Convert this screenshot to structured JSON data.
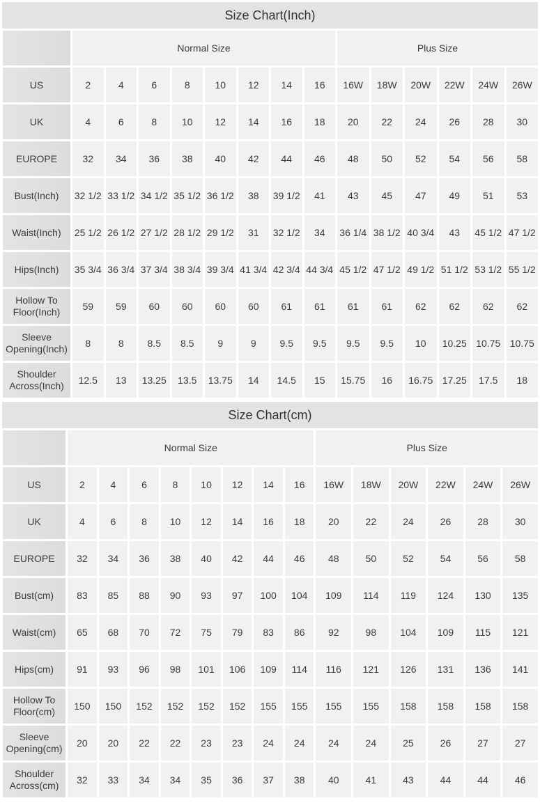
{
  "tables": [
    {
      "title": "Size Chart(Inch)",
      "groups": [
        "Normal Size",
        "Plus Size"
      ],
      "rows": [
        {
          "label": "US",
          "values": [
            "2",
            "4",
            "6",
            "8",
            "10",
            "12",
            "14",
            "16",
            "16W",
            "18W",
            "20W",
            "22W",
            "24W",
            "26W"
          ]
        },
        {
          "label": "UK",
          "values": [
            "4",
            "6",
            "8",
            "10",
            "12",
            "14",
            "16",
            "18",
            "20",
            "22",
            "24",
            "26",
            "28",
            "30"
          ]
        },
        {
          "label": "EUROPE",
          "values": [
            "32",
            "34",
            "36",
            "38",
            "40",
            "42",
            "44",
            "46",
            "48",
            "50",
            "52",
            "54",
            "56",
            "58"
          ]
        },
        {
          "label": "Bust(Inch)",
          "values": [
            "32 1/2",
            "33 1/2",
            "34 1/2",
            "35 1/2",
            "36 1/2",
            "38",
            "39 1/2",
            "41",
            "43",
            "45",
            "47",
            "49",
            "51",
            "53"
          ]
        },
        {
          "label": "Waist(Inch)",
          "values": [
            "25 1/2",
            "26 1/2",
            "27 1/2",
            "28 1/2",
            "29 1/2",
            "31",
            "32 1/2",
            "34",
            "36 1/4",
            "38 1/2",
            "40 3/4",
            "43",
            "45 1/2",
            "47 1/2"
          ]
        },
        {
          "label": "Hips(Inch)",
          "values": [
            "35 3/4",
            "36 3/4",
            "37 3/4",
            "38 3/4",
            "39 3/4",
            "41 3/4",
            "42 3/4",
            "44 3/4",
            "45 1/2",
            "47 1/2",
            "49 1/2",
            "51 1/2",
            "53 1/2",
            "55 1/2"
          ]
        },
        {
          "label": "Hollow To Floor(Inch)",
          "values": [
            "59",
            "59",
            "60",
            "60",
            "60",
            "60",
            "61",
            "61",
            "61",
            "61",
            "62",
            "62",
            "62",
            "62"
          ]
        },
        {
          "label": "Sleeve Opening(Inch)",
          "values": [
            "8",
            "8",
            "8.5",
            "8.5",
            "9",
            "9",
            "9.5",
            "9.5",
            "9.5",
            "9.5",
            "10",
            "10.25",
            "10.75",
            "10.75"
          ]
        },
        {
          "label": "Shoulder Across(Inch)",
          "values": [
            "12.5",
            "13",
            "13.25",
            "13.5",
            "13.75",
            "14",
            "14.5",
            "15",
            "15.75",
            "16",
            "16.75",
            "17.25",
            "17.5",
            "18"
          ]
        }
      ]
    },
    {
      "title": "Size Chart(cm)",
      "groups": [
        "Normal Size",
        "Plus Size"
      ],
      "rows": [
        {
          "label": "US",
          "values": [
            "2",
            "4",
            "6",
            "8",
            "10",
            "12",
            "14",
            "16",
            "16W",
            "18W",
            "20W",
            "22W",
            "24W",
            "26W"
          ]
        },
        {
          "label": "UK",
          "values": [
            "4",
            "6",
            "8",
            "10",
            "12",
            "14",
            "16",
            "18",
            "20",
            "22",
            "24",
            "26",
            "28",
            "30"
          ]
        },
        {
          "label": "EUROPE",
          "values": [
            "32",
            "34",
            "36",
            "38",
            "40",
            "42",
            "44",
            "46",
            "48",
            "50",
            "52",
            "54",
            "56",
            "58"
          ]
        },
        {
          "label": "Bust(cm)",
          "values": [
            "83",
            "85",
            "88",
            "90",
            "93",
            "97",
            "100",
            "104",
            "109",
            "114",
            "119",
            "124",
            "130",
            "135"
          ]
        },
        {
          "label": "Waist(cm)",
          "values": [
            "65",
            "68",
            "70",
            "72",
            "75",
            "79",
            "83",
            "86",
            "92",
            "98",
            "104",
            "109",
            "115",
            "121"
          ]
        },
        {
          "label": "Hips(cm)",
          "values": [
            "91",
            "93",
            "96",
            "98",
            "101",
            "106",
            "109",
            "114",
            "116",
            "121",
            "126",
            "131",
            "136",
            "141"
          ]
        },
        {
          "label": "Hollow To Floor(cm)",
          "values": [
            "150",
            "150",
            "152",
            "152",
            "152",
            "152",
            "155",
            "155",
            "155",
            "155",
            "158",
            "158",
            "158",
            "158"
          ]
        },
        {
          "label": "Sleeve Opening(cm)",
          "values": [
            "20",
            "20",
            "22",
            "22",
            "23",
            "23",
            "24",
            "24",
            "24",
            "24",
            "25",
            "26",
            "27",
            "27"
          ]
        },
        {
          "label": "Shoulder Across(cm)",
          "values": [
            "32",
            "33",
            "34",
            "34",
            "35",
            "36",
            "37",
            "38",
            "40",
            "41",
            "43",
            "44",
            "44",
            "46"
          ]
        }
      ]
    }
  ]
}
